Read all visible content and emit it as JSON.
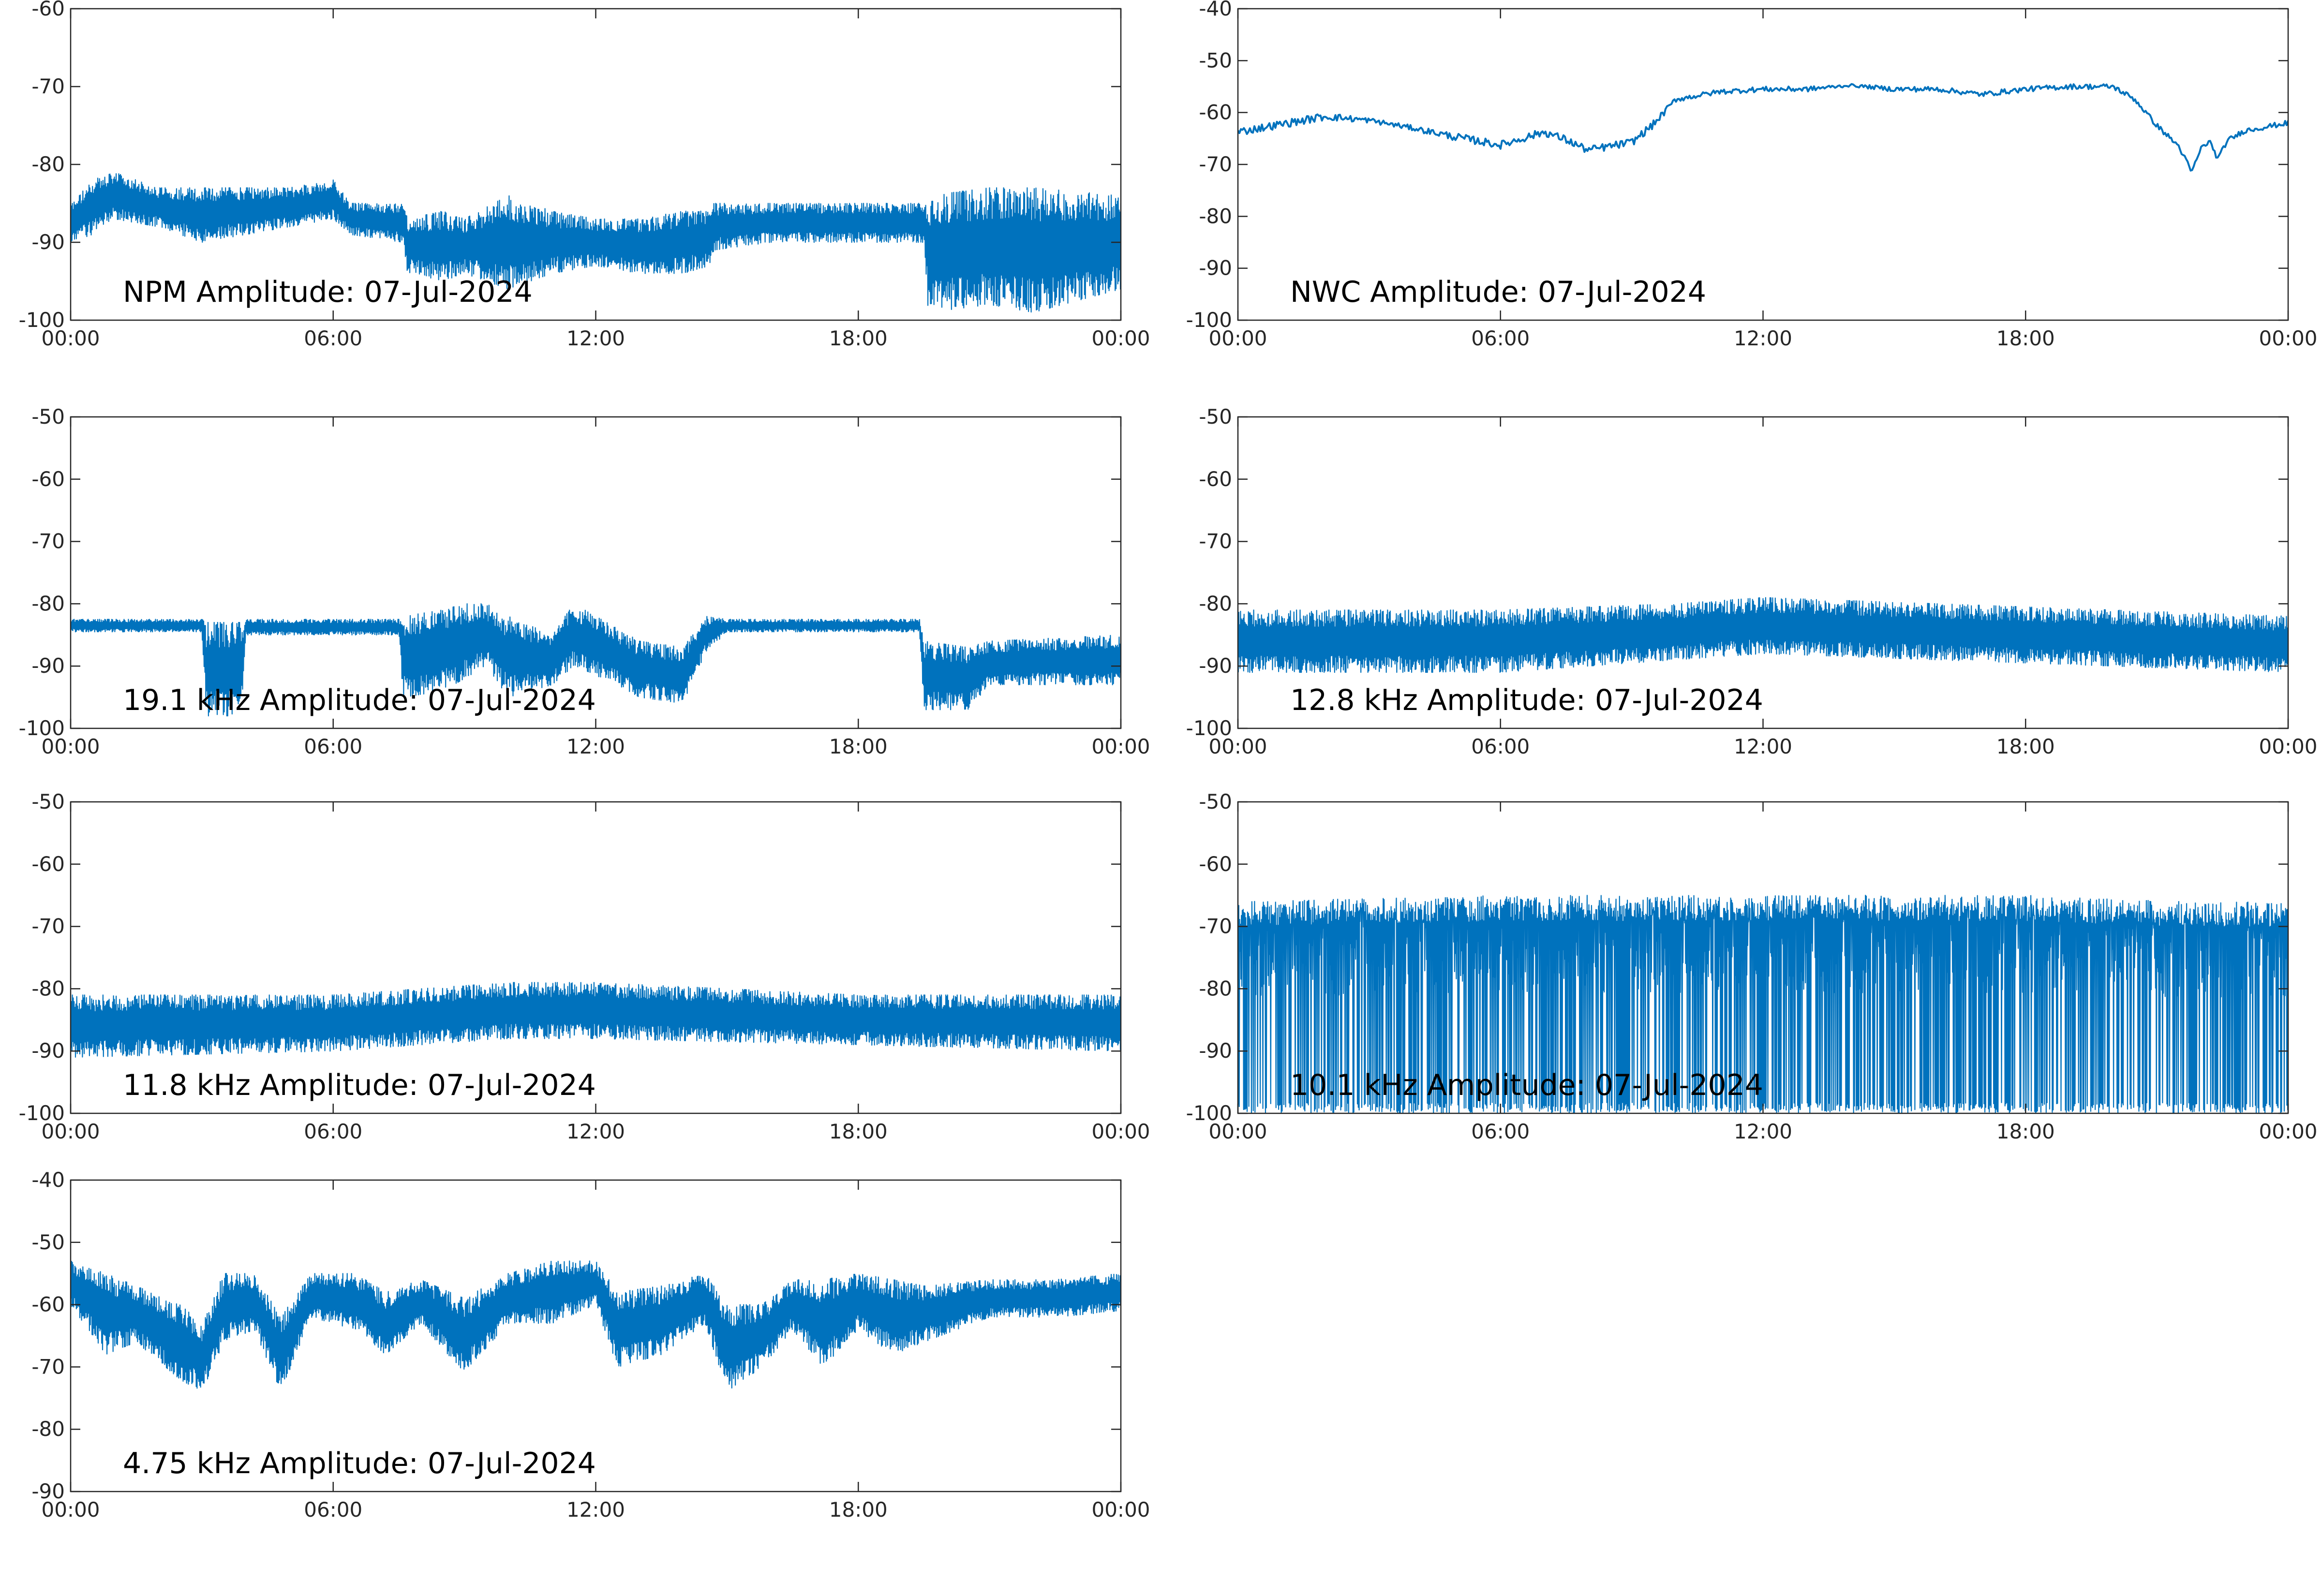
{
  "colors": {
    "trace": "#0072bd",
    "axes": "#262626",
    "background": "#ffffff"
  },
  "chart_data": [
    {
      "type": "line",
      "title": "NPM Amplitude: 07-Jul-2024",
      "ylim": [
        -100,
        -60
      ],
      "yticks": [
        -60,
        -70,
        -80,
        -90,
        -100
      ],
      "xlim": [
        0,
        24
      ],
      "xticks": [
        "00:00",
        "06:00",
        "12:00",
        "18:00",
        "00:00"
      ],
      "noise": "high",
      "series": [
        {
          "envelope": [
            {
              "t": 0,
              "min": -90,
              "max": -85
            },
            {
              "t": 0.5,
              "min": -89,
              "max": -82
            },
            {
              "t": 1,
              "min": -87,
              "max": -81
            },
            {
              "t": 2,
              "min": -88,
              "max": -83
            },
            {
              "t": 3,
              "min": -90,
              "max": -83
            },
            {
              "t": 4,
              "min": -89,
              "max": -83
            },
            {
              "t": 5,
              "min": -88,
              "max": -83
            },
            {
              "t": 6,
              "min": -87,
              "max": -82
            },
            {
              "t": 6.4,
              "min": -89,
              "max": -85
            },
            {
              "t": 7.6,
              "min": -90,
              "max": -85
            },
            {
              "t": 7.7,
              "min": -94,
              "max": -87
            },
            {
              "t": 8.5,
              "min": -95,
              "max": -86
            },
            {
              "t": 9,
              "min": -94,
              "max": -87
            },
            {
              "t": 10,
              "min": -96,
              "max": -84
            },
            {
              "t": 11,
              "min": -94,
              "max": -86
            },
            {
              "t": 12,
              "min": -93,
              "max": -87
            },
            {
              "t": 13,
              "min": -94,
              "max": -87
            },
            {
              "t": 14,
              "min": -94,
              "max": -86
            },
            {
              "t": 14.6,
              "min": -93,
              "max": -86
            },
            {
              "t": 14.7,
              "min": -91,
              "max": -85
            },
            {
              "t": 16,
              "min": -90,
              "max": -85
            },
            {
              "t": 18,
              "min": -90,
              "max": -85
            },
            {
              "t": 19.5,
              "min": -90,
              "max": -85
            },
            {
              "t": 19.6,
              "min": -99,
              "max": -84
            },
            {
              "t": 21,
              "min": -98,
              "max": -83
            },
            {
              "t": 22,
              "min": -99,
              "max": -83
            },
            {
              "t": 24,
              "min": -96,
              "max": -84
            }
          ]
        }
      ]
    },
    {
      "type": "line",
      "title": "NWC Amplitude: 07-Jul-2024",
      "ylim": [
        -100,
        -40
      ],
      "yticks": [
        -40,
        -50,
        -60,
        -70,
        -80,
        -90,
        -100
      ],
      "xlim": [
        0,
        24
      ],
      "xticks": [
        "00:00",
        "06:00",
        "12:00",
        "18:00",
        "00:00"
      ],
      "noise": "low",
      "series": [
        {
          "envelope": [
            {
              "t": 0,
              "min": -64.5,
              "max": -63
            },
            {
              "t": 1,
              "min": -63,
              "max": -61.5
            },
            {
              "t": 2,
              "min": -61.5,
              "max": -60
            },
            {
              "t": 3,
              "min": -62,
              "max": -61
            },
            {
              "t": 4,
              "min": -63.5,
              "max": -62.5
            },
            {
              "t": 5,
              "min": -65.5,
              "max": -64
            },
            {
              "t": 6,
              "min": -67,
              "max": -65.5
            },
            {
              "t": 7,
              "min": -64.5,
              "max": -63
            },
            {
              "t": 7.5,
              "min": -66,
              "max": -64.5
            },
            {
              "t": 8,
              "min": -68,
              "max": -66.5
            },
            {
              "t": 9,
              "min": -66.5,
              "max": -65
            },
            {
              "t": 9.5,
              "min": -63,
              "max": -61.5
            },
            {
              "t": 10,
              "min": -58,
              "max": -57
            },
            {
              "t": 11,
              "min": -56.5,
              "max": -55.5
            },
            {
              "t": 12,
              "min": -56,
              "max": -55
            },
            {
              "t": 13,
              "min": -56,
              "max": -55
            },
            {
              "t": 14,
              "min": -55,
              "max": -54.5
            },
            {
              "t": 15,
              "min": -56,
              "max": -55
            },
            {
              "t": 16,
              "min": -56,
              "max": -55
            },
            {
              "t": 17,
              "min": -57,
              "max": -56
            },
            {
              "t": 18,
              "min": -56,
              "max": -55
            },
            {
              "t": 19,
              "min": -55.5,
              "max": -54.5
            },
            {
              "t": 20,
              "min": -55.5,
              "max": -54.5
            },
            {
              "t": 20.5,
              "min": -58,
              "max": -57
            },
            {
              "t": 21,
              "min": -63,
              "max": -62
            },
            {
              "t": 21.5,
              "min": -67,
              "max": -66
            },
            {
              "t": 21.8,
              "min": -72,
              "max": -71
            },
            {
              "t": 22,
              "min": -67.5,
              "max": -66.5
            },
            {
              "t": 22.2,
              "min": -66,
              "max": -65
            },
            {
              "t": 22.4,
              "min": -69.5,
              "max": -68.5
            },
            {
              "t": 22.6,
              "min": -66,
              "max": -65
            },
            {
              "t": 23,
              "min": -64,
              "max": -63
            },
            {
              "t": 24,
              "min": -62.5,
              "max": -61.5
            }
          ]
        }
      ]
    },
    {
      "type": "line",
      "title": "19.1 kHz Amplitude: 07-Jul-2024",
      "ylim": [
        -100,
        -50
      ],
      "yticks": [
        -50,
        -60,
        -70,
        -80,
        -90,
        -100
      ],
      "xlim": [
        0,
        24
      ],
      "xticks": [
        "00:00",
        "06:00",
        "12:00",
        "18:00",
        "00:00"
      ],
      "noise": "mid",
      "series": [
        {
          "envelope": [
            {
              "t": 0,
              "min": -84.5,
              "max": -82.5
            },
            {
              "t": 3,
              "min": -84.5,
              "max": -82.5
            },
            {
              "t": 3.1,
              "min": -98,
              "max": -83
            },
            {
              "t": 3.9,
              "min": -98,
              "max": -83
            },
            {
              "t": 4,
              "min": -85,
              "max": -82.5
            },
            {
              "t": 7.5,
              "min": -85,
              "max": -82.5
            },
            {
              "t": 7.6,
              "min": -95,
              "max": -82
            },
            {
              "t": 8.5,
              "min": -94,
              "max": -81
            },
            {
              "t": 9,
              "min": -92,
              "max": -80
            },
            {
              "t": 9.5,
              "min": -90,
              "max": -80
            },
            {
              "t": 10,
              "min": -95,
              "max": -82
            },
            {
              "t": 11,
              "min": -93,
              "max": -85
            },
            {
              "t": 11.5,
              "min": -90,
              "max": -80
            },
            {
              "t": 12.5,
              "min": -93,
              "max": -84
            },
            {
              "t": 13,
              "min": -95,
              "max": -86
            },
            {
              "t": 14,
              "min": -96,
              "max": -87
            },
            {
              "t": 14.5,
              "min": -88,
              "max": -82
            },
            {
              "t": 15,
              "min": -84.5,
              "max": -82.5
            },
            {
              "t": 19.4,
              "min": -84.5,
              "max": -82.5
            },
            {
              "t": 19.5,
              "min": -97,
              "max": -86
            },
            {
              "t": 20.5,
              "min": -97,
              "max": -87
            },
            {
              "t": 21,
              "min": -93,
              "max": -86
            },
            {
              "t": 24,
              "min": -93,
              "max": -85
            }
          ]
        }
      ]
    },
    {
      "type": "line",
      "title": "12.8 kHz Amplitude: 07-Jul-2024",
      "ylim": [
        -100,
        -50
      ],
      "yticks": [
        -50,
        -60,
        -70,
        -80,
        -90,
        -100
      ],
      "xlim": [
        0,
        24
      ],
      "xticks": [
        "00:00",
        "06:00",
        "12:00",
        "18:00",
        "00:00"
      ],
      "noise": "high",
      "series": [
        {
          "envelope": [
            {
              "t": 0,
              "min": -91,
              "max": -81
            },
            {
              "t": 6,
              "min": -91,
              "max": -81
            },
            {
              "t": 10,
              "min": -89,
              "max": -80
            },
            {
              "t": 12,
              "min": -88,
              "max": -79
            },
            {
              "t": 16,
              "min": -89,
              "max": -80
            },
            {
              "t": 20,
              "min": -90,
              "max": -81
            },
            {
              "t": 24,
              "min": -91,
              "max": -82
            }
          ]
        }
      ]
    },
    {
      "type": "line",
      "title": "11.8 kHz Amplitude: 07-Jul-2024",
      "ylim": [
        -100,
        -50
      ],
      "yticks": [
        -50,
        -60,
        -70,
        -80,
        -90,
        -100
      ],
      "xlim": [
        0,
        24
      ],
      "xticks": [
        "00:00",
        "06:00",
        "12:00",
        "18:00",
        "00:00"
      ],
      "noise": "high",
      "series": [
        {
          "envelope": [
            {
              "t": 0,
              "min": -91,
              "max": -81
            },
            {
              "t": 6,
              "min": -90,
              "max": -81
            },
            {
              "t": 10,
              "min": -88,
              "max": -79
            },
            {
              "t": 12,
              "min": -88,
              "max": -79
            },
            {
              "t": 18,
              "min": -89,
              "max": -81
            },
            {
              "t": 24,
              "min": -90,
              "max": -81
            }
          ]
        }
      ]
    },
    {
      "type": "line",
      "title": "10.1 kHz Amplitude: 07-Jul-2024",
      "ylim": [
        -100,
        -50
      ],
      "yticks": [
        -50,
        -60,
        -70,
        -80,
        -90,
        -100
      ],
      "xlim": [
        0,
        24
      ],
      "xticks": [
        "00:00",
        "06:00",
        "12:00",
        "18:00",
        "00:00"
      ],
      "noise": "spiky",
      "series": [
        {
          "envelope": [
            {
              "t": 0,
              "min": -100,
              "max": -66
            },
            {
              "t": 6,
              "min": -100,
              "max": -65
            },
            {
              "t": 12,
              "min": -100,
              "max": -65
            },
            {
              "t": 18,
              "min": -100,
              "max": -65
            },
            {
              "t": 21.5,
              "min": -100,
              "max": -66
            },
            {
              "t": 24,
              "min": -100,
              "max": -66
            }
          ]
        }
      ]
    },
    {
      "type": "line",
      "title": "4.75 kHz Amplitude: 07-Jul-2024",
      "ylim": [
        -90,
        -40
      ],
      "yticks": [
        -40,
        -50,
        -60,
        -70,
        -80,
        -90
      ],
      "xlim": [
        0,
        24
      ],
      "xticks": [
        "00:00",
        "06:00",
        "12:00",
        "18:00",
        "00:00"
      ],
      "noise": "high",
      "series": [
        {
          "envelope": [
            {
              "t": 0,
              "min": -60,
              "max": -53
            },
            {
              "t": 0.8,
              "min": -68,
              "max": -55
            },
            {
              "t": 1.5,
              "min": -66,
              "max": -57
            },
            {
              "t": 2.5,
              "min": -72,
              "max": -60
            },
            {
              "t": 3,
              "min": -74,
              "max": -63
            },
            {
              "t": 3.5,
              "min": -66,
              "max": -55
            },
            {
              "t": 4.2,
              "min": -64,
              "max": -55
            },
            {
              "t": 4.8,
              "min": -74,
              "max": -62
            },
            {
              "t": 5.5,
              "min": -62,
              "max": -55
            },
            {
              "t": 6.5,
              "min": -64,
              "max": -55
            },
            {
              "t": 7.2,
              "min": -68,
              "max": -58
            },
            {
              "t": 8,
              "min": -63,
              "max": -56
            },
            {
              "t": 9,
              "min": -71,
              "max": -59
            },
            {
              "t": 10,
              "min": -63,
              "max": -55
            },
            {
              "t": 11,
              "min": -63,
              "max": -53
            },
            {
              "t": 12,
              "min": -60,
              "max": -53
            },
            {
              "t": 12.5,
              "min": -70,
              "max": -58
            },
            {
              "t": 13.5,
              "min": -68,
              "max": -57
            },
            {
              "t": 14.5,
              "min": -63,
              "max": -55
            },
            {
              "t": 15,
              "min": -74,
              "max": -60
            },
            {
              "t": 15.8,
              "min": -70,
              "max": -60
            },
            {
              "t": 16.5,
              "min": -64,
              "max": -56
            },
            {
              "t": 17.2,
              "min": -70,
              "max": -56
            },
            {
              "t": 18,
              "min": -64,
              "max": -55
            },
            {
              "t": 18.8,
              "min": -68,
              "max": -56
            },
            {
              "t": 19.5,
              "min": -66,
              "max": -57
            },
            {
              "t": 21,
              "min": -62,
              "max": -56
            },
            {
              "t": 22.5,
              "min": -62,
              "max": -56
            },
            {
              "t": 24,
              "min": -61,
              "max": -55
            }
          ]
        }
      ]
    }
  ]
}
